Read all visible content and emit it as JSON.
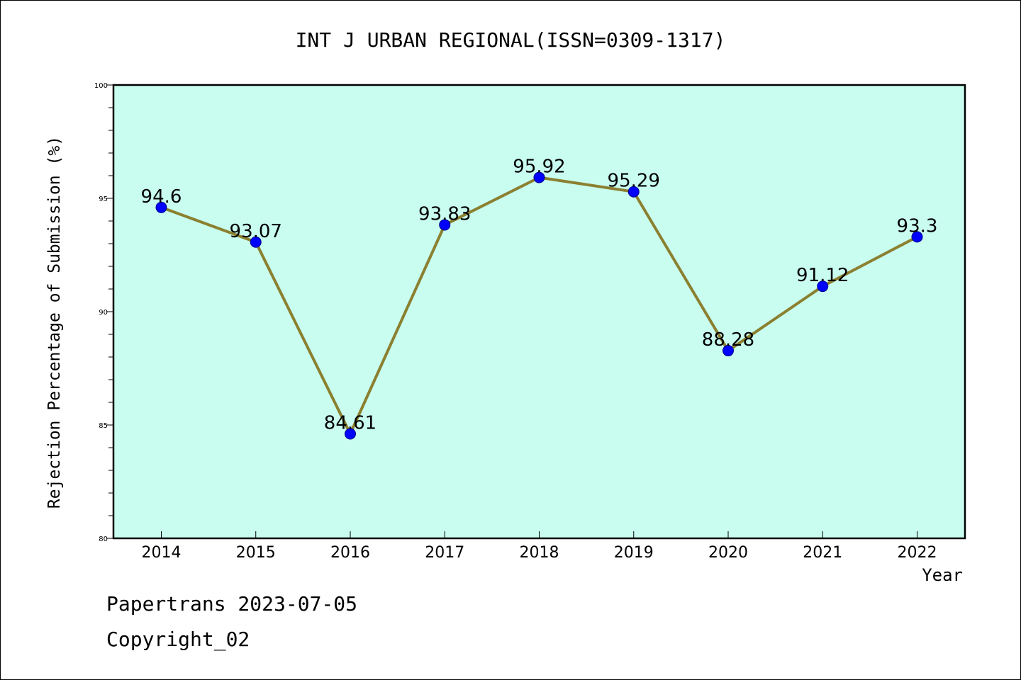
{
  "chart_data": {
    "type": "line",
    "title": "INT J URBAN REGIONAL(ISSN=0309-1317)",
    "xlabel": "Year",
    "ylabel": "Rejection Percentage of Submission (%)",
    "ylim": [
      80,
      100
    ],
    "yticks": [
      80,
      85,
      90,
      95,
      100
    ],
    "grid": false,
    "categories": [
      "2014",
      "2015",
      "2016",
      "2017",
      "2018",
      "2019",
      "2020",
      "2021",
      "2022"
    ],
    "series": [
      {
        "values": [
          94.6,
          93.07,
          84.61,
          93.83,
          95.92,
          95.29,
          88.28,
          91.12,
          93.3
        ],
        "labels": [
          "94.6",
          "93.07",
          "84.61",
          "93.83",
          "95.92",
          "95.29",
          "88.28",
          "91.12",
          "93.3"
        ]
      }
    ],
    "colors": {
      "plot_background": "#c8fdef",
      "line": "#8b8030",
      "marker_fill": "#0000ff",
      "marker_stroke": "#00008b"
    }
  },
  "footer": {
    "line1": "Papertrans 2023-07-05",
    "line2": "Copyright_02"
  }
}
